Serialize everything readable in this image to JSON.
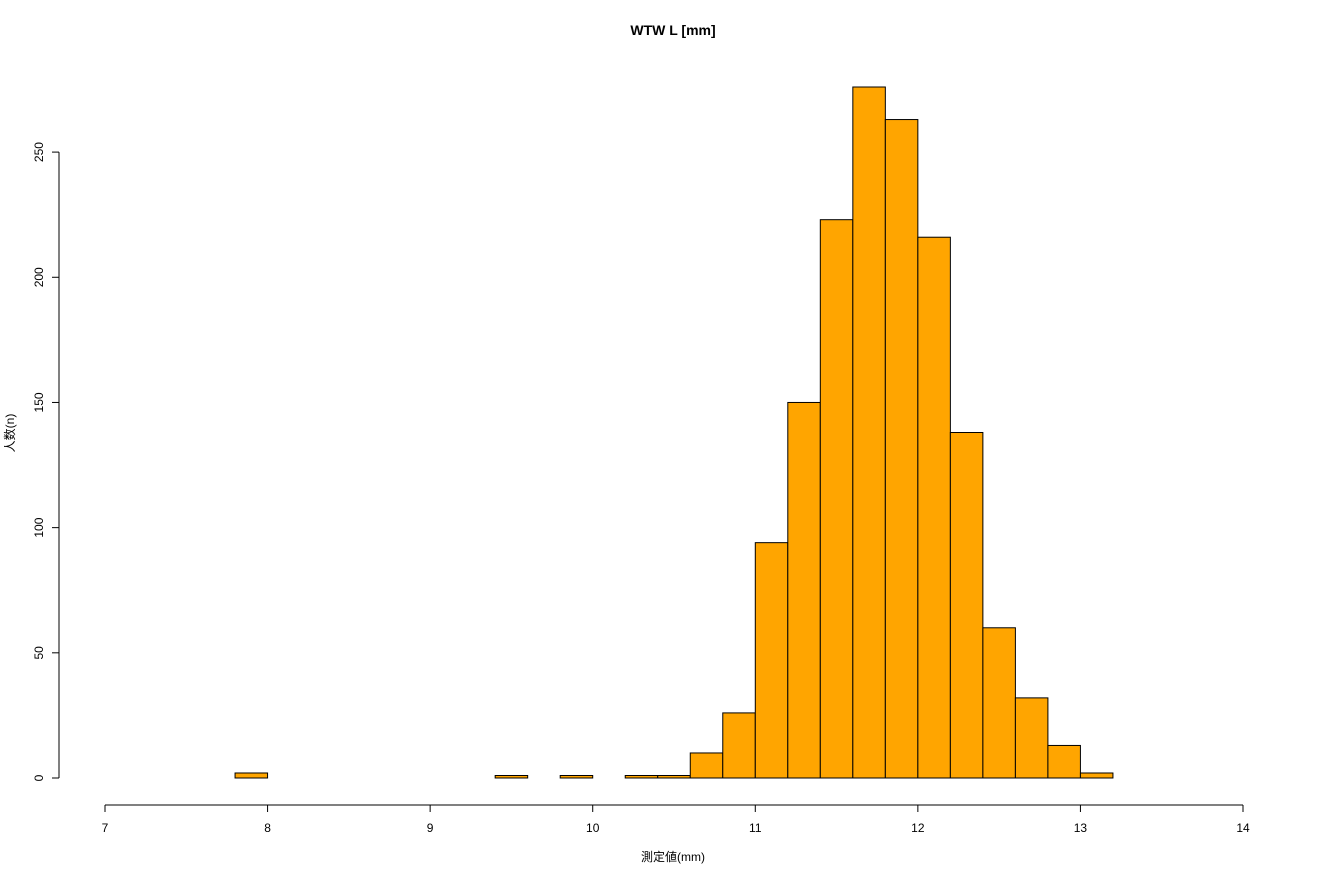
{
  "chart_data": {
    "type": "bar",
    "title": "WTW L [mm]",
    "xlabel": "測定値(mm)",
    "ylabel": "人数(n)",
    "xlim": [
      7,
      14
    ],
    "ylim": [
      0,
      276
    ],
    "x_ticks": [
      7,
      8,
      9,
      10,
      11,
      12,
      13,
      14
    ],
    "y_ticks": [
      0,
      50,
      100,
      150,
      200,
      250
    ],
    "bin_width": 0.2,
    "bin_starts": [
      7.8,
      8.0,
      8.2,
      8.4,
      8.6,
      8.8,
      9.0,
      9.2,
      9.4,
      9.6,
      9.8,
      10.0,
      10.2,
      10.4,
      10.6,
      10.8,
      11.0,
      11.2,
      11.4,
      11.6,
      11.8,
      12.0,
      12.2,
      12.4,
      12.6,
      12.8,
      13.0
    ],
    "values": [
      2,
      0,
      0,
      0,
      0,
      0,
      0,
      0,
      1,
      0,
      1,
      0,
      1,
      1,
      10,
      26,
      94,
      150,
      223,
      276,
      263,
      216,
      138,
      60,
      32,
      13,
      2
    ],
    "bar_color": "#FFA500",
    "grid": false
  }
}
